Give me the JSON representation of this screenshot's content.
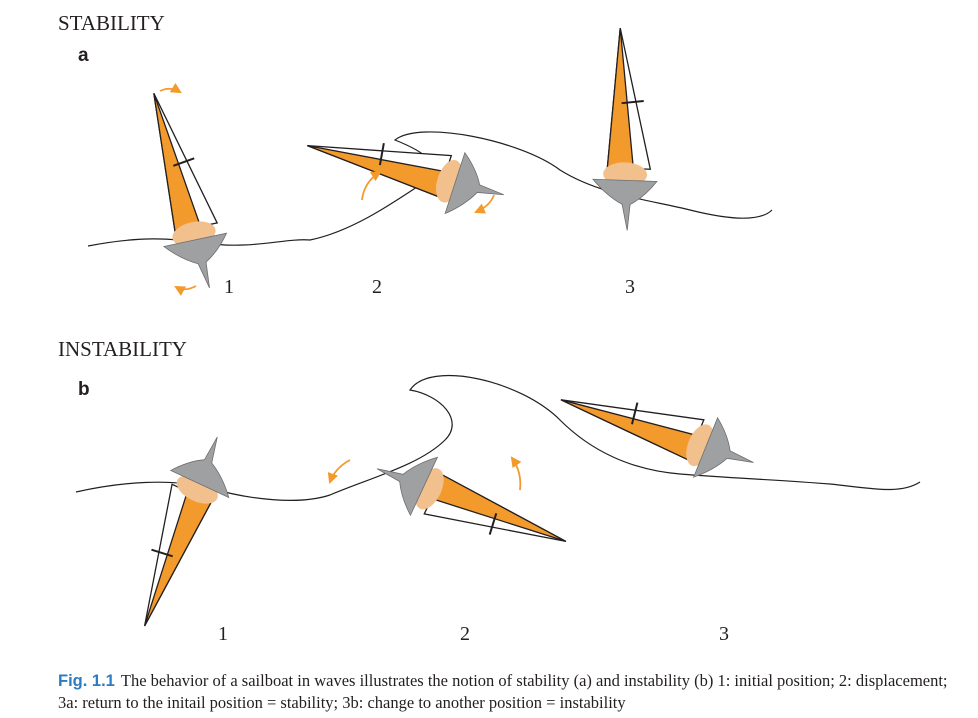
{
  "panels": {
    "a": {
      "heading": "STABILITY",
      "letter": "a",
      "positions": [
        "1",
        "2",
        "3"
      ]
    },
    "b": {
      "heading": "INSTABILITY",
      "letter": "b",
      "positions": [
        "1",
        "2",
        "3"
      ]
    }
  },
  "colors": {
    "sail": "#f39a2c",
    "hull": "#9fa0a2",
    "ballast": "#f2c08c",
    "arrow": "#f39a2c",
    "line": "#231f20",
    "caption_label": "#2c7cc1"
  },
  "caption": {
    "label": "Fig. 1.1",
    "text": "The behavior of a sailboat in waves illustrates the notion of stability (a) and instability (b) 1: initial position; 2: displacement; 3a: return to the initail position = stability; 3b: change to another position = instability"
  }
}
